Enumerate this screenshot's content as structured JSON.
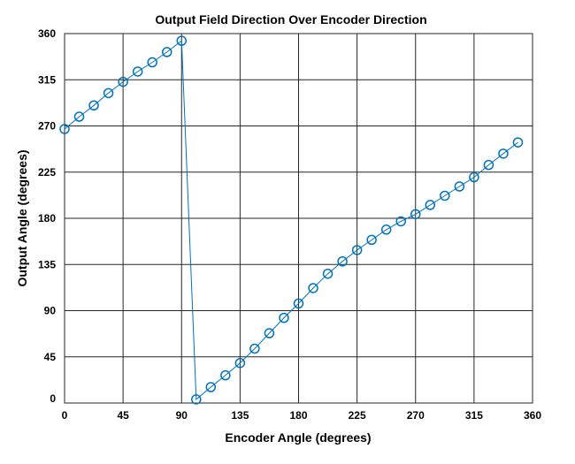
{
  "chart_data": {
    "type": "line",
    "title": "Output Field Direction Over Encoder Direction",
    "xlabel": "Encoder Angle (degrees)",
    "ylabel": "Output Angle (degrees)",
    "xlim": [
      0,
      360
    ],
    "ylim": [
      0,
      360
    ],
    "xticks": [
      0,
      45,
      90,
      135,
      180,
      225,
      270,
      315,
      360
    ],
    "yticks": [
      0,
      45,
      90,
      135,
      180,
      225,
      270,
      315,
      360
    ],
    "grid": true,
    "marker": "circle",
    "color": "#0072BD",
    "series": [
      {
        "name": "Output Angle",
        "x": [
          0,
          11.25,
          22.5,
          33.75,
          45,
          56.25,
          67.5,
          78.75,
          90,
          101.25,
          112.5,
          123.75,
          135,
          146.25,
          157.5,
          168.75,
          180,
          191.25,
          202.5,
          213.75,
          225,
          236.25,
          247.5,
          258.75,
          270,
          281.25,
          292.5,
          303.75,
          315,
          326.25,
          337.5,
          348.75
        ],
        "y": [
          267,
          279,
          290,
          302,
          313,
          323,
          332,
          342,
          353,
          3.5,
          15.5,
          27,
          39,
          53,
          68,
          83,
          97,
          112,
          126,
          138,
          149,
          159,
          169,
          177,
          184,
          193,
          202,
          211,
          220,
          232,
          243,
          254
        ]
      }
    ]
  }
}
